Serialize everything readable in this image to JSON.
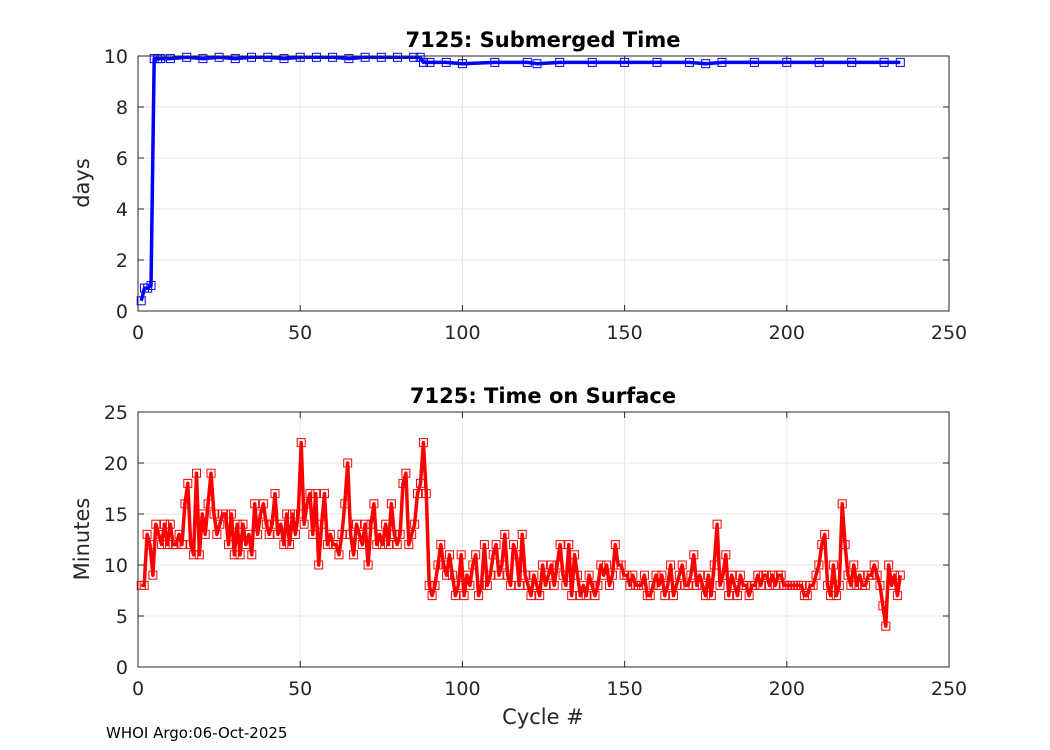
{
  "footer": "WHOI Argo:06-Oct-2025",
  "chart_data": [
    {
      "type": "line",
      "title": "7125: Submerged Time",
      "xlabel": "",
      "ylabel": "days",
      "xlim": [
        0,
        250
      ],
      "ylim": [
        0,
        10
      ],
      "xticks": [
        0,
        50,
        100,
        150,
        200,
        250
      ],
      "yticks": [
        0,
        2,
        4,
        6,
        8,
        10
      ],
      "grid": true,
      "marker": "square",
      "color": "#0000ff",
      "series": [
        {
          "points": [
            [
              1,
              0.4
            ],
            [
              2,
              0.9
            ],
            [
              3,
              0.9
            ],
            [
              4,
              1.0
            ],
            [
              5,
              9.9
            ],
            [
              6,
              9.9
            ],
            [
              7,
              9.9
            ],
            [
              10,
              9.9
            ],
            [
              15,
              9.95
            ],
            [
              20,
              9.9
            ],
            [
              25,
              9.95
            ],
            [
              30,
              9.9
            ],
            [
              35,
              9.95
            ],
            [
              40,
              9.95
            ],
            [
              45,
              9.9
            ],
            [
              50,
              9.95
            ],
            [
              55,
              9.95
            ],
            [
              60,
              9.95
            ],
            [
              65,
              9.9
            ],
            [
              70,
              9.95
            ],
            [
              75,
              9.95
            ],
            [
              80,
              9.95
            ],
            [
              85,
              9.95
            ],
            [
              87,
              9.95
            ],
            [
              88,
              9.75
            ],
            [
              90,
              9.75
            ],
            [
              95,
              9.75
            ],
            [
              100,
              9.7
            ],
            [
              110,
              9.75
            ],
            [
              120,
              9.75
            ],
            [
              123,
              9.7
            ],
            [
              130,
              9.75
            ],
            [
              140,
              9.75
            ],
            [
              150,
              9.75
            ],
            [
              160,
              9.75
            ],
            [
              170,
              9.75
            ],
            [
              175,
              9.7
            ],
            [
              180,
              9.75
            ],
            [
              190,
              9.75
            ],
            [
              200,
              9.75
            ],
            [
              210,
              9.75
            ],
            [
              220,
              9.75
            ],
            [
              230,
              9.75
            ],
            [
              235,
              9.75
            ]
          ]
        }
      ]
    },
    {
      "type": "line",
      "title": "7125: Time on Surface",
      "xlabel": "Cycle #",
      "ylabel": "Minutes",
      "xlim": [
        0,
        250
      ],
      "ylim": [
        0,
        25
      ],
      "xticks": [
        0,
        50,
        100,
        150,
        200,
        250
      ],
      "yticks": [
        0,
        5,
        10,
        15,
        20,
        25
      ],
      "grid": true,
      "marker": "square",
      "color": "#ff0000",
      "series": [
        {
          "values": [
            8,
            8,
            13,
            12,
            9,
            14,
            13,
            12,
            14,
            12,
            14,
            12,
            12,
            13,
            12,
            16,
            18,
            12,
            11,
            19,
            11,
            15,
            13,
            16,
            19,
            15,
            13,
            14,
            15,
            15,
            12,
            15,
            11,
            14,
            11,
            14,
            12,
            13,
            11,
            16,
            13,
            15,
            16,
            14,
            13,
            14,
            17,
            13,
            14,
            12,
            15,
            12,
            15,
            13,
            15,
            22,
            14,
            16,
            17,
            13,
            17,
            10,
            14,
            17,
            12,
            13,
            12,
            12,
            11,
            13,
            16,
            20,
            13,
            11,
            14,
            13,
            12,
            14,
            10,
            14,
            16,
            12,
            13,
            12,
            14,
            12,
            16,
            13,
            12,
            13,
            18,
            19,
            12,
            13,
            14,
            17,
            18,
            22,
            17,
            8,
            7,
            8,
            10,
            12,
            10,
            9,
            11,
            9,
            7,
            8,
            11,
            7,
            9,
            8,
            10,
            11,
            7,
            8,
            12,
            8,
            9,
            11,
            12,
            9,
            10,
            13,
            9,
            8,
            12,
            11,
            8,
            13,
            9,
            8,
            7,
            9,
            8,
            7,
            10,
            8,
            9,
            10,
            8,
            10,
            12,
            9,
            8,
            12,
            7,
            11,
            9,
            7,
            8,
            7,
            9,
            8,
            7,
            8,
            10,
            9,
            10,
            8,
            9,
            12,
            10,
            10,
            9,
            9,
            8,
            9,
            8,
            8,
            8,
            9,
            7,
            7,
            8,
            9,
            8,
            9,
            7,
            8,
            10,
            7,
            8,
            9,
            10,
            8,
            8,
            9,
            11,
            8,
            9,
            8,
            7,
            9,
            7,
            10,
            14,
            8,
            9,
            11,
            7,
            9,
            8,
            7,
            9,
            8,
            8,
            7,
            8,
            8,
            9,
            8,
            9,
            9,
            8,
            9,
            8,
            9,
            9,
            8,
            8,
            8,
            8,
            8,
            8,
            8,
            7,
            7,
            8,
            8,
            9,
            10,
            12,
            13,
            8,
            7,
            10,
            7,
            8,
            16,
            12,
            9,
            8,
            10,
            8,
            9,
            8,
            8,
            9,
            9,
            10,
            9,
            8,
            6,
            4,
            10,
            8,
            9,
            7,
            9
          ]
        }
      ]
    }
  ]
}
